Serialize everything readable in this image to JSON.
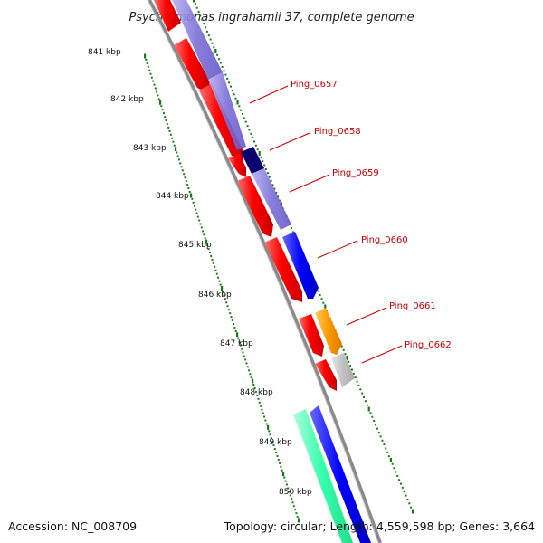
{
  "title": "Psychromonas ingrahamii 37, complete genome",
  "accession_text": "Accession: NC_008709",
  "summary_text": "Topology: circular; Length: 4,559,598 bp; Genes: 3,664",
  "colors": {
    "backbone": "#8a8a8a",
    "tick_ring": "#1a7a1a",
    "cds_red": "#ff0000",
    "feature_blue": "#0000ff",
    "feature_lavender": "#7b6fd6",
    "feature_navy": "#0a0070",
    "feature_orange": "#ff9900",
    "feature_gray": "#c0c0c0",
    "feature_green": "#33ffaa",
    "label_red": "#cc0000"
  },
  "ticks": [
    {
      "label": "841 kbp"
    },
    {
      "label": "842 kbp"
    },
    {
      "label": "843 kbp"
    },
    {
      "label": "844 kbp"
    },
    {
      "label": "845 kbp"
    },
    {
      "label": "846 kbp"
    },
    {
      "label": "847 kbp"
    },
    {
      "label": "848 kbp"
    },
    {
      "label": "849 kbp"
    },
    {
      "label": "850 kbp"
    }
  ],
  "gene_labels": [
    {
      "label": "Ping_0657"
    },
    {
      "label": "Ping_0658"
    },
    {
      "label": "Ping_0659"
    },
    {
      "label": "Ping_0660"
    },
    {
      "label": "Ping_0661"
    },
    {
      "label": "Ping_0662"
    }
  ]
}
